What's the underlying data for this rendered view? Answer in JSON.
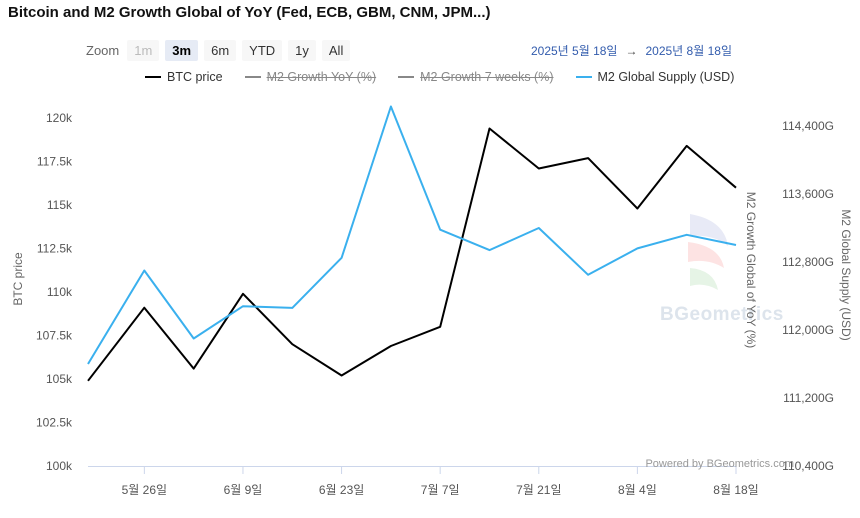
{
  "chart_data": {
    "type": "line",
    "title": "Bitcoin and M2 Growth Global of YoY (Fed, ECB, GBM, CNM, JPM...)",
    "zoom": {
      "label": "Zoom",
      "buttons": [
        {
          "label": "1m",
          "state": "disabled"
        },
        {
          "label": "3m",
          "state": "selected"
        },
        {
          "label": "6m",
          "state": "normal"
        },
        {
          "label": "YTD",
          "state": "normal"
        },
        {
          "label": "1y",
          "state": "normal"
        },
        {
          "label": "All",
          "state": "normal"
        }
      ]
    },
    "range": {
      "from": "2025년 5월 18일",
      "arrow": "→",
      "to": "2025년 8월 18일"
    },
    "legend": [
      {
        "name": "BTC price",
        "color": "#000000",
        "visible": true
      },
      {
        "name": "M2 Growth YoY (%)",
        "color": "#888888",
        "visible": false
      },
      {
        "name": "M2 Growth 7 weeks (%)",
        "color": "#888888",
        "visible": false
      },
      {
        "name": "M2 Global Supply (USD)",
        "color": "#3ab0ee",
        "visible": true
      }
    ],
    "x_domain": [
      0,
      92
    ],
    "xticks": [
      {
        "label": "5월 26일",
        "day": 8
      },
      {
        "label": "6월 9일",
        "day": 22
      },
      {
        "label": "6월 23일",
        "day": 36
      },
      {
        "label": "7월 7일",
        "day": 50
      },
      {
        "label": "7월 21일",
        "day": 64
      },
      {
        "label": "8월 4일",
        "day": 78
      },
      {
        "label": "8월 18일",
        "day": 92
      }
    ],
    "y_left": {
      "label": "BTC price",
      "ylim": [
        100000,
        121500
      ],
      "ticks": [
        {
          "v": 100000,
          "label": "100k"
        },
        {
          "v": 102500,
          "label": "102.5k"
        },
        {
          "v": 105000,
          "label": "105k"
        },
        {
          "v": 107500,
          "label": "107.5k"
        },
        {
          "v": 110000,
          "label": "110k"
        },
        {
          "v": 112500,
          "label": "112.5k"
        },
        {
          "v": 115000,
          "label": "115k"
        },
        {
          "v": 117500,
          "label": "117.5k"
        },
        {
          "v": 120000,
          "label": "120k"
        }
      ]
    },
    "y_right_inner": {
      "label": "M2 Growth Global of YoY (%)"
    },
    "y_right": {
      "label": "M2 Global Supply (USD)",
      "ylim": [
        110400,
        114800
      ],
      "ticks": [
        {
          "v": 110400,
          "label": "110,400G"
        },
        {
          "v": 111200,
          "label": "111,200G"
        },
        {
          "v": 112000,
          "label": "112,000G"
        },
        {
          "v": 112800,
          "label": "112,800G"
        },
        {
          "v": 113600,
          "label": "113,600G"
        },
        {
          "v": 114400,
          "label": "114,400G"
        }
      ]
    },
    "series": [
      {
        "name": "BTC price",
        "axis": "left",
        "color": "#000000",
        "x": [
          0,
          8,
          15,
          22,
          29,
          36,
          43,
          50,
          57,
          64,
          71,
          78,
          85,
          92
        ],
        "values": [
          104900,
          109100,
          105600,
          109900,
          107000,
          105200,
          106900,
          108000,
          119400,
          117100,
          117700,
          114800,
          118400,
          116000
        ]
      },
      {
        "name": "M2 Global Supply (USD)",
        "axis": "right",
        "color": "#3ab0ee",
        "x": [
          0,
          8,
          15,
          22,
          29,
          36,
          43,
          50,
          57,
          64,
          71,
          78,
          85,
          92
        ],
        "values": [
          111600,
          112700,
          111900,
          112280,
          112260,
          112850,
          114630,
          113180,
          112940,
          113200,
          112650,
          112960,
          113120,
          113000
        ]
      }
    ],
    "credits": "Powered by BGeometrics.com",
    "watermark": "BGeometrics"
  }
}
